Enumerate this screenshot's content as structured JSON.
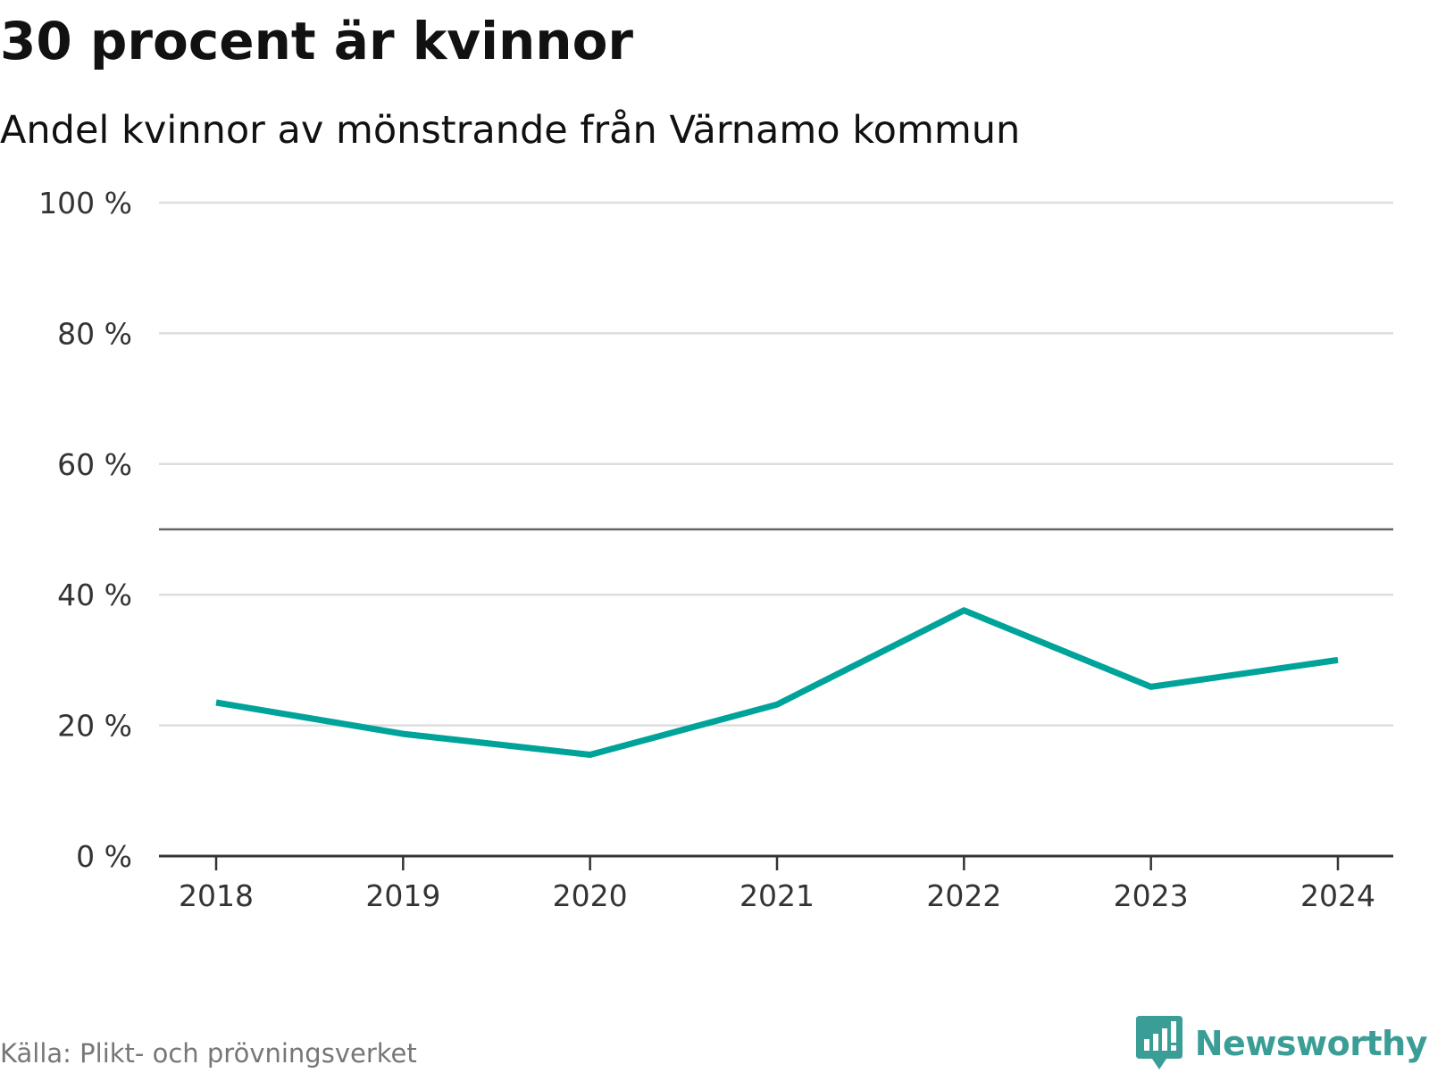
{
  "header": {
    "title": "30 procent är kvinnor",
    "subtitle": "Andel kvinnor av mönstrande från Värnamo kommun"
  },
  "footer": {
    "source": "Källa: Plikt- och prövningsverket",
    "brand": "Newsworthy",
    "brand_icon": "bar-chart-speech-bubble-icon"
  },
  "colors": {
    "line": "#00a39a",
    "brand": "#3a9e96",
    "gridline": "#dddddd",
    "reference_line": "#666666",
    "axis": "#333333"
  },
  "chart_data": {
    "type": "line",
    "title": "30 procent är kvinnor",
    "subtitle": "Andel kvinnor av mönstrande från Värnamo kommun",
    "x": [
      "2018",
      "2019",
      "2020",
      "2021",
      "2022",
      "2023",
      "2024"
    ],
    "series": [
      {
        "values": [
          23.5,
          18.7,
          15.5,
          23.2,
          37.6,
          25.9,
          30.0
        ]
      }
    ],
    "yticks": [
      "0 %",
      "20 %",
      "40 %",
      "60 %",
      "80 %",
      "100 %"
    ],
    "ytick_values": [
      0,
      20,
      40,
      60,
      80,
      100
    ],
    "ylim": [
      0,
      100
    ],
    "reference_line": 50,
    "grid": true,
    "legend": "none"
  }
}
